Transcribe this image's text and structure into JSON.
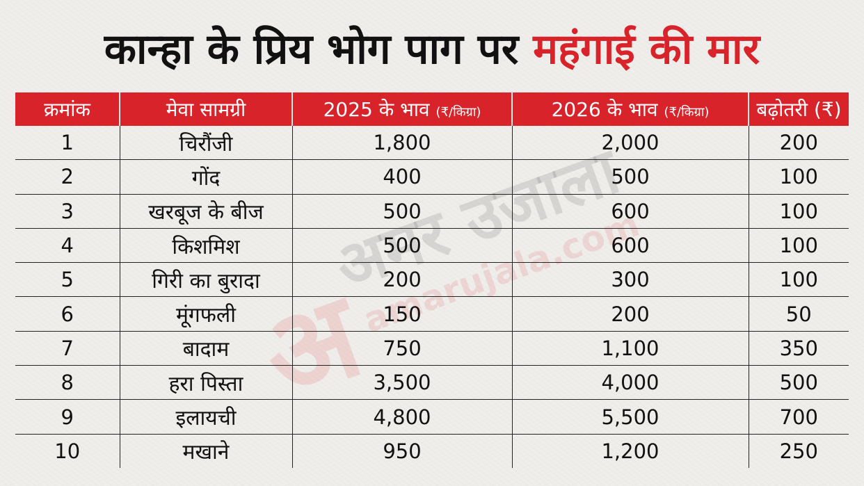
{
  "title": {
    "main": "कान्हा के प्रिय भोग पाग पर ",
    "highlight": "महंगाई की मार"
  },
  "watermark": {
    "logo": "अ",
    "brand": "अमर उजाला",
    "url": "amarujala.com"
  },
  "colors": {
    "accent": "#d8232a",
    "background": "#f0eeeb",
    "text": "#111111"
  },
  "table": {
    "headers": {
      "serial": "क्रमांक",
      "item": "मेवा सामग्री",
      "price_2025": "2025 के भाव",
      "price_2025_unit": "(₹/किग्रा)",
      "price_2026": "2026 के भाव",
      "price_2026_unit": "(₹/किग्रा)",
      "increase": "बढ़ोतरी (₹)"
    },
    "rows": [
      {
        "serial": "1",
        "item": "चिरौंजी",
        "price_2025": "1,800",
        "price_2026": "2,000",
        "increase": "200"
      },
      {
        "serial": "2",
        "item": "गोंद",
        "price_2025": "400",
        "price_2026": "500",
        "increase": "100"
      },
      {
        "serial": "3",
        "item": "खरबूज के बीज",
        "price_2025": "500",
        "price_2026": "600",
        "increase": "100"
      },
      {
        "serial": "4",
        "item": "किशमिश",
        "price_2025": "500",
        "price_2026": "600",
        "increase": "100"
      },
      {
        "serial": "5",
        "item": "गिरी का बुरादा",
        "price_2025": "200",
        "price_2026": "300",
        "increase": "100"
      },
      {
        "serial": "6",
        "item": "मूंगफली",
        "price_2025": "150",
        "price_2026": "200",
        "increase": "50"
      },
      {
        "serial": "7",
        "item": "बादाम",
        "price_2025": "750",
        "price_2026": "1,100",
        "increase": "350"
      },
      {
        "serial": "8",
        "item": "हरा पिस्ता",
        "price_2025": "3,500",
        "price_2026": "4,000",
        "increase": "500"
      },
      {
        "serial": "9",
        "item": "इलायची",
        "price_2025": "4,800",
        "price_2026": "5,500",
        "increase": "700"
      },
      {
        "serial": "10",
        "item": "मखाने",
        "price_2025": "950",
        "price_2026": "1,200",
        "increase": "250"
      }
    ]
  }
}
